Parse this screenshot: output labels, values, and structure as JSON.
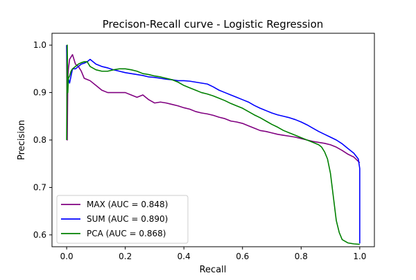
{
  "chart_data": {
    "type": "line",
    "title": "Precison-Recall curve - Logistic Regression",
    "xlabel": "Recall",
    "ylabel": "Precision",
    "xlim": [
      -0.05,
      1.05
    ],
    "ylim": [
      0.575,
      1.025
    ],
    "xticks": [
      0.0,
      0.2,
      0.4,
      0.6,
      0.8,
      1.0
    ],
    "xtick_labels": [
      "0.0",
      "0.2",
      "0.4",
      "0.6",
      "0.8",
      "1.0"
    ],
    "yticks": [
      0.6,
      0.7,
      0.8,
      0.9,
      1.0
    ],
    "ytick_labels": [
      "0.6",
      "0.7",
      "0.8",
      "0.9",
      "1.0"
    ],
    "grid": false,
    "legend_position": "lower-left",
    "series": [
      {
        "name": "MAX (AUC = 0.848)",
        "color": "#800080",
        "x": [
          0.0,
          0.002,
          0.004,
          0.006,
          0.01,
          0.015,
          0.02,
          0.03,
          0.04,
          0.05,
          0.06,
          0.08,
          0.1,
          0.12,
          0.14,
          0.16,
          0.18,
          0.2,
          0.22,
          0.24,
          0.26,
          0.28,
          0.3,
          0.32,
          0.34,
          0.36,
          0.38,
          0.4,
          0.42,
          0.44,
          0.46,
          0.48,
          0.5,
          0.52,
          0.54,
          0.56,
          0.58,
          0.6,
          0.62,
          0.64,
          0.66,
          0.68,
          0.7,
          0.72,
          0.74,
          0.76,
          0.78,
          0.8,
          0.82,
          0.84,
          0.86,
          0.88,
          0.9,
          0.92,
          0.94,
          0.96,
          0.98,
          1.0
        ],
        "y": [
          1.0,
          0.8,
          0.93,
          0.95,
          0.97,
          0.975,
          0.98,
          0.96,
          0.955,
          0.945,
          0.93,
          0.925,
          0.915,
          0.905,
          0.9,
          0.9,
          0.9,
          0.9,
          0.895,
          0.89,
          0.895,
          0.885,
          0.878,
          0.88,
          0.878,
          0.875,
          0.872,
          0.868,
          0.865,
          0.86,
          0.857,
          0.855,
          0.852,
          0.848,
          0.845,
          0.84,
          0.838,
          0.835,
          0.83,
          0.825,
          0.82,
          0.818,
          0.815,
          0.812,
          0.81,
          0.808,
          0.806,
          0.803,
          0.8,
          0.797,
          0.795,
          0.793,
          0.79,
          0.785,
          0.778,
          0.77,
          0.764,
          0.752
        ]
      },
      {
        "name": "SUM (AUC = 0.890)",
        "color": "#0000ff",
        "x": [
          0.0,
          0.002,
          0.005,
          0.01,
          0.015,
          0.02,
          0.03,
          0.04,
          0.05,
          0.06,
          0.07,
          0.08,
          0.1,
          0.12,
          0.14,
          0.16,
          0.18,
          0.2,
          0.22,
          0.24,
          0.26,
          0.28,
          0.3,
          0.32,
          0.34,
          0.36,
          0.38,
          0.4,
          0.42,
          0.44,
          0.46,
          0.48,
          0.5,
          0.52,
          0.54,
          0.56,
          0.58,
          0.6,
          0.62,
          0.64,
          0.66,
          0.68,
          0.7,
          0.72,
          0.74,
          0.76,
          0.78,
          0.8,
          0.82,
          0.84,
          0.86,
          0.88,
          0.9,
          0.92,
          0.94,
          0.96,
          0.98,
          0.995,
          1.0,
          1.0
        ],
        "y": [
          1.0,
          0.91,
          0.93,
          0.92,
          0.935,
          0.95,
          0.95,
          0.955,
          0.96,
          0.962,
          0.965,
          0.97,
          0.96,
          0.955,
          0.952,
          0.948,
          0.945,
          0.942,
          0.94,
          0.938,
          0.936,
          0.933,
          0.932,
          0.93,
          0.928,
          0.927,
          0.925,
          0.925,
          0.924,
          0.922,
          0.92,
          0.918,
          0.912,
          0.905,
          0.9,
          0.895,
          0.89,
          0.885,
          0.88,
          0.873,
          0.867,
          0.862,
          0.857,
          0.853,
          0.85,
          0.847,
          0.843,
          0.838,
          0.832,
          0.825,
          0.818,
          0.812,
          0.806,
          0.8,
          0.792,
          0.782,
          0.772,
          0.76,
          0.74,
          0.582
        ]
      },
      {
        "name": "PCA (AUC = 0.868)",
        "color": "#008000",
        "x": [
          0.0,
          0.002,
          0.004,
          0.006,
          0.01,
          0.015,
          0.02,
          0.03,
          0.04,
          0.05,
          0.06,
          0.07,
          0.08,
          0.1,
          0.12,
          0.14,
          0.16,
          0.18,
          0.2,
          0.22,
          0.24,
          0.26,
          0.28,
          0.3,
          0.32,
          0.34,
          0.36,
          0.38,
          0.4,
          0.42,
          0.44,
          0.46,
          0.48,
          0.5,
          0.52,
          0.54,
          0.56,
          0.58,
          0.6,
          0.62,
          0.64,
          0.66,
          0.68,
          0.7,
          0.72,
          0.74,
          0.76,
          0.78,
          0.8,
          0.82,
          0.84,
          0.86,
          0.87,
          0.88,
          0.89,
          0.9,
          0.91,
          0.92,
          0.93,
          0.94,
          0.96,
          0.98,
          1.0
        ],
        "y": [
          0.8,
          1.0,
          0.9,
          0.93,
          0.935,
          0.945,
          0.95,
          0.955,
          0.96,
          0.963,
          0.965,
          0.965,
          0.955,
          0.948,
          0.945,
          0.945,
          0.948,
          0.95,
          0.95,
          0.948,
          0.945,
          0.94,
          0.938,
          0.935,
          0.933,
          0.93,
          0.927,
          0.922,
          0.915,
          0.91,
          0.905,
          0.9,
          0.897,
          0.893,
          0.888,
          0.883,
          0.877,
          0.872,
          0.867,
          0.86,
          0.853,
          0.847,
          0.84,
          0.833,
          0.827,
          0.82,
          0.815,
          0.81,
          0.805,
          0.8,
          0.795,
          0.79,
          0.785,
          0.775,
          0.76,
          0.73,
          0.68,
          0.63,
          0.605,
          0.59,
          0.583,
          0.581,
          0.58
        ]
      }
    ]
  }
}
